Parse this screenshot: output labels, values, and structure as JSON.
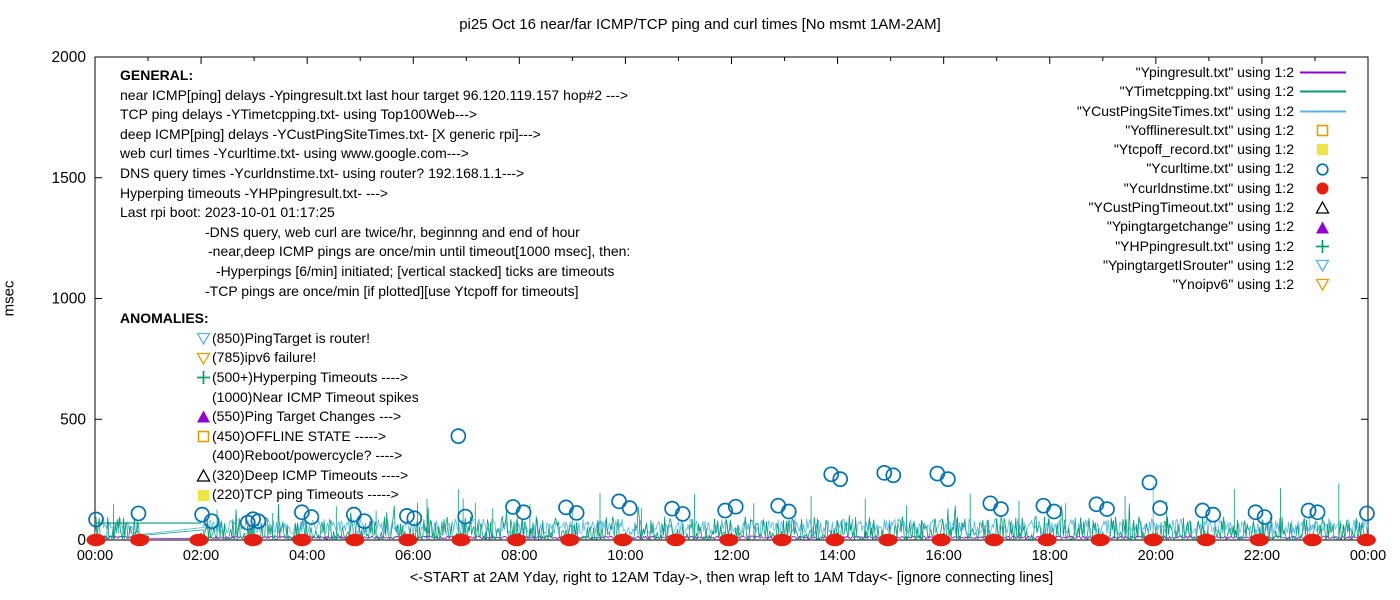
{
  "title": "pi25 Oct 16  near/far ICMP/TCP ping and curl times [No msmt 1AM-2AM]",
  "annotations": {
    "general_heading": "GENERAL:",
    "general_lines": [
      {
        "text": "near ICMP[ping] delays -Ypingresult.txt last hour target 96.120.119.157 hop#2 --->",
        "indent": 0
      },
      {
        "text": "TCP ping delays -YTimetcpping.txt- using Top100Web--->",
        "indent": 0
      },
      {
        "text": "deep ICMP[ping] delays -YCustPingSiteTimes.txt- [X generic rpi]--->",
        "indent": 0
      },
      {
        "text": "web curl times -Ycurltime.txt- using www.google.com--->",
        "indent": 0
      },
      {
        "text": "DNS query times -Ycurldnstime.txt- using router? 192.168.1.1--->",
        "indent": 0
      },
      {
        "text": "Hyperping timeouts -YHPpingresult.txt- --->",
        "indent": 0
      },
      {
        "text": "Last rpi boot: 2023-10-01 01:17:25",
        "indent": 0
      },
      {
        "text": "-DNS query, web curl are twice/hr, beginnng and end of hour",
        "indent": 85
      },
      {
        "text": "-near,deep ICMP pings are once/min until timeout[1000 msec], then:",
        "indent": 88
      },
      {
        "text": "-Hyperpings [6/min] initiated; [vertical stacked] ticks are timeouts",
        "indent": 96
      },
      {
        "text": "-TCP pings are once/min [if plotted][use Ytcpoff for timeouts]",
        "indent": 85
      }
    ],
    "anomalies_heading": "ANOMALIES:",
    "anomalies": [
      {
        "marker": "triangle-down-open",
        "color": "#56b4e9",
        "label": "(850)PingTarget is router!"
      },
      {
        "marker": "triangle-down-open",
        "color": "#e69f00",
        "label": "(785)ipv6 failure!"
      },
      {
        "marker": "plus",
        "color": "#009e73",
        "label": "(500+)Hyperping Timeouts ---->"
      },
      {
        "marker": "none",
        "color": "",
        "label": "(1000)Near ICMP Timeout spikes"
      },
      {
        "marker": "triangle-up-filled",
        "color": "#9400d3",
        "label": "(550)Ping Target Changes --->"
      },
      {
        "marker": "square-open",
        "color": "#e69f00",
        "label": "(450)OFFLINE STATE ----->"
      },
      {
        "marker": "none",
        "color": "",
        "label": "(400)Reboot/powercycle? ---->"
      },
      {
        "marker": "triangle-up-open",
        "color": "#000000",
        "label": "(320)Deep ICMP Timeouts ---->"
      },
      {
        "marker": "square-filled",
        "color": "#f0e442",
        "label": "(220)TCP ping Timeouts ----->"
      }
    ]
  },
  "legend": [
    {
      "label": "\"Ypingresult.txt\" using 1:2",
      "marker": "line",
      "color": "#9400d3"
    },
    {
      "label": "\"YTimetcpping.txt\" using 1:2",
      "marker": "line",
      "color": "#009e73"
    },
    {
      "label": "\"YCustPingSiteTimes.txt\" using 1:2",
      "marker": "line",
      "color": "#56b4e9"
    },
    {
      "label": "\"Yofflineresult.txt\" using 1:2",
      "marker": "square-open",
      "color": "#e69f00"
    },
    {
      "label": "\"Ytcpoff_record.txt\" using 1:2",
      "marker": "square-filled",
      "color": "#f0e442"
    },
    {
      "label": "\"Ycurltime.txt\" using 1:2",
      "marker": "circle-open",
      "color": "#0072b2"
    },
    {
      "label": "\"Ycurldnstime.txt\" using 1:2",
      "marker": "circle-filled",
      "color": "#e51e10"
    },
    {
      "label": "\"YCustPingTimeout.txt\" using 1:2",
      "marker": "triangle-up-open",
      "color": "#000000"
    },
    {
      "label": "\"Ypingtargetchange\" using 1:2",
      "marker": "triangle-up-filled",
      "color": "#9400d3"
    },
    {
      "label": "\"YHPpingresult.txt\" using 1:2",
      "marker": "plus",
      "color": "#009e73"
    },
    {
      "label": "\"YpingtargetISrouter\" using 1:2",
      "marker": "triangle-down-open",
      "color": "#56b4e9"
    },
    {
      "label": "\"Ynoipv6\" using 1:2",
      "marker": "triangle-down-open",
      "color": "#e69f00"
    }
  ],
  "chart_data": {
    "type": "line",
    "title": "pi25 Oct 16  near/far ICMP/TCP ping and curl times [No msmt 1AM-2AM]",
    "xlabel": "<-START at 2AM Yday, right to 12AM Tday->, then wrap left to 1AM Tday<- [ignore connecting lines]",
    "ylabel": "msec",
    "ylim": [
      0,
      2000
    ],
    "y_ticks": [
      0,
      500,
      1000,
      1500,
      2000
    ],
    "x_hours": [
      0,
      2,
      4,
      6,
      8,
      10,
      12,
      14,
      16,
      18,
      20,
      22,
      24
    ],
    "x_tick_labels": [
      "00:00",
      "02:00",
      "04:00",
      "06:00",
      "08:00",
      "10:00",
      "12:00",
      "14:00",
      "16:00",
      "18:00",
      "20:00",
      "22:00",
      "00:00"
    ],
    "gap_hours": [
      0.86,
      2.04
    ],
    "gap_note": "No msmt 1AM-2AM",
    "series": [
      {
        "name": "Ypingresult.txt",
        "type": "noise-line",
        "color": "#9400d3",
        "band": [
          5,
          17
        ],
        "pow": 1,
        "spikes": []
      },
      {
        "name": "YCustPingSiteTimes.txt",
        "type": "noise-line",
        "color": "#56b4e9",
        "band": [
          20,
          88
        ],
        "pow": 1,
        "spikes": [
          [
            9.0,
            120
          ],
          [
            13.2,
            118
          ],
          [
            19.95,
            232
          ],
          [
            22.9,
            130
          ]
        ]
      },
      {
        "name": "YTimetcpping.txt",
        "type": "noise-line",
        "color": "#009e73",
        "band": [
          2,
          98
        ],
        "pow": 2.2,
        "extra": 55,
        "flat_segment": {
          "from": 0,
          "to": 2.0,
          "value": 70
        },
        "spikes": [
          [
            0.35,
            150
          ],
          [
            2.3,
            125
          ],
          [
            3.35,
            112
          ],
          [
            4.55,
            140
          ],
          [
            5.3,
            122
          ],
          [
            6.08,
            155
          ],
          [
            6.26,
            170
          ],
          [
            6.85,
            210
          ],
          [
            6.94,
            172
          ],
          [
            7.17,
            155
          ],
          [
            7.5,
            132
          ],
          [
            8.2,
            148
          ],
          [
            9.52,
            195
          ],
          [
            10.3,
            132
          ],
          [
            11.3,
            190
          ],
          [
            12.42,
            152
          ],
          [
            13.5,
            182
          ],
          [
            14.52,
            172
          ],
          [
            15.3,
            142
          ],
          [
            16.5,
            192
          ],
          [
            17.42,
            162
          ],
          [
            18.3,
            152
          ],
          [
            19.42,
            182
          ],
          [
            20.2,
            158
          ],
          [
            21.48,
            212
          ],
          [
            22.35,
            215
          ],
          [
            23.45,
            235
          ]
        ]
      },
      {
        "name": "Ycurltime.txt",
        "type": "scatter",
        "marker": "circle-open",
        "color": "#0072b2",
        "points": [
          [
            0.02,
            85
          ],
          [
            0.82,
            110
          ],
          [
            2.02,
            105
          ],
          [
            2.2,
            78
          ],
          [
            2.88,
            72
          ],
          [
            2.98,
            86
          ],
          [
            3.08,
            78
          ],
          [
            3.9,
            115
          ],
          [
            4.08,
            95
          ],
          [
            4.88,
            105
          ],
          [
            5.08,
            78
          ],
          [
            5.88,
            100
          ],
          [
            6.02,
            90
          ],
          [
            6.85,
            430
          ],
          [
            6.98,
            97
          ],
          [
            7.88,
            137
          ],
          [
            8.08,
            115
          ],
          [
            8.88,
            135
          ],
          [
            9.08,
            112
          ],
          [
            9.88,
            160
          ],
          [
            10.08,
            132
          ],
          [
            10.88,
            130
          ],
          [
            11.08,
            108
          ],
          [
            11.88,
            122
          ],
          [
            12.08,
            138
          ],
          [
            12.88,
            142
          ],
          [
            13.08,
            118
          ],
          [
            13.88,
            272
          ],
          [
            14.05,
            252
          ],
          [
            14.88,
            278
          ],
          [
            15.05,
            268
          ],
          [
            15.88,
            275
          ],
          [
            16.08,
            252
          ],
          [
            16.88,
            152
          ],
          [
            17.08,
            128
          ],
          [
            17.88,
            142
          ],
          [
            18.08,
            118
          ],
          [
            18.88,
            148
          ],
          [
            19.08,
            128
          ],
          [
            19.88,
            238
          ],
          [
            20.08,
            132
          ],
          [
            20.88,
            122
          ],
          [
            21.08,
            105
          ],
          [
            21.88,
            115
          ],
          [
            22.05,
            95
          ],
          [
            22.88,
            122
          ],
          [
            23.05,
            115
          ],
          [
            23.98,
            110
          ]
        ]
      },
      {
        "name": "Ycurldnstime.txt",
        "type": "scatter",
        "marker": "circle-filled",
        "color": "#e51e10",
        "value": 0,
        "hours": [
          0.02,
          0.84,
          1.96,
          2.98,
          3.9,
          4.9,
          5.9,
          6.9,
          7.95,
          8.95,
          9.95,
          10.95,
          11.95,
          12.95,
          13.95,
          14.95,
          15.95,
          16.95,
          17.95,
          18.95,
          19.95,
          20.95,
          21.95,
          22.95,
          23.97
        ]
      },
      {
        "name": "Yofflineresult.txt",
        "type": "scatter",
        "marker": "square-open",
        "color": "#e69f00",
        "points": []
      },
      {
        "name": "Ytcpoff_record.txt",
        "type": "scatter",
        "marker": "square-filled",
        "color": "#f0e442",
        "points": []
      },
      {
        "name": "YCustPingTimeout.txt",
        "type": "scatter",
        "marker": "triangle-up-open",
        "color": "#000000",
        "points": []
      },
      {
        "name": "Ypingtargetchange",
        "type": "scatter",
        "marker": "triangle-up-filled",
        "color": "#9400d3",
        "points": []
      },
      {
        "name": "YHPpingresult.txt",
        "type": "scatter",
        "marker": "plus",
        "color": "#009e73",
        "points": []
      },
      {
        "name": "YpingtargetISrouter",
        "type": "scatter",
        "marker": "triangle-down-open",
        "color": "#56b4e9",
        "points": []
      },
      {
        "name": "Ynoipv6",
        "type": "scatter",
        "marker": "triangle-down-open",
        "color": "#e69f00",
        "points": []
      }
    ]
  }
}
